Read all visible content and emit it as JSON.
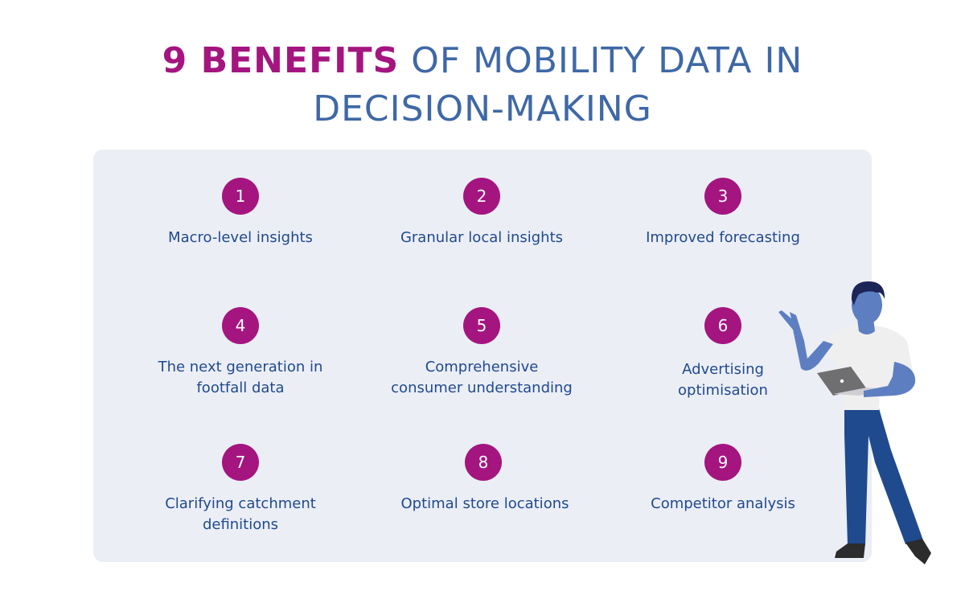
{
  "header": {
    "title_accent": "9 BENEFITS",
    "title_rest_line1": " OF MOBILITY DATA IN",
    "title_line2": "DECISION-MAKING"
  },
  "benefits": [
    {
      "number": "1",
      "label_lines": [
        "Macro-level insights"
      ]
    },
    {
      "number": "2",
      "label_lines": [
        "Granular local insights"
      ]
    },
    {
      "number": "3",
      "label_lines": [
        "Improved forecasting"
      ]
    },
    {
      "number": "4",
      "label_lines": [
        "The next generation in",
        "footfall data"
      ]
    },
    {
      "number": "5",
      "label_lines": [
        "Comprehensive",
        "consumer understanding"
      ]
    },
    {
      "number": "6",
      "label_lines": [
        "Advertising",
        "optimisation"
      ]
    },
    {
      "number": "7",
      "label_lines": [
        "Clarifying catchment",
        "definitions"
      ]
    },
    {
      "number": "8",
      "label_lines": [
        "Optimal store locations"
      ]
    },
    {
      "number": "9",
      "label_lines": [
        "Competitor analysis"
      ]
    }
  ],
  "colors": {
    "accent": "#a4157f",
    "title_blue": "#3f68a6",
    "label_blue": "#1f4a8e",
    "panel_bg": "#eceef6"
  },
  "illustration": {
    "icon": "person-with-laptop-icon"
  }
}
